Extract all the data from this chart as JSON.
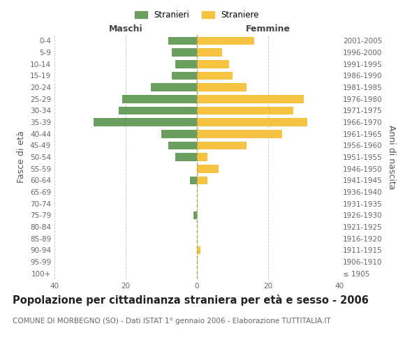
{
  "age_groups": [
    "100+",
    "95-99",
    "90-94",
    "85-89",
    "80-84",
    "75-79",
    "70-74",
    "65-69",
    "60-64",
    "55-59",
    "50-54",
    "45-49",
    "40-44",
    "35-39",
    "30-34",
    "25-29",
    "20-24",
    "15-19",
    "10-14",
    "5-9",
    "0-4"
  ],
  "birth_years": [
    "≤ 1905",
    "1906-1910",
    "1911-1915",
    "1916-1920",
    "1921-1925",
    "1926-1930",
    "1931-1935",
    "1936-1940",
    "1941-1945",
    "1946-1950",
    "1951-1955",
    "1956-1960",
    "1961-1965",
    "1966-1970",
    "1971-1975",
    "1976-1980",
    "1981-1985",
    "1986-1990",
    "1991-1995",
    "1996-2000",
    "2001-2005"
  ],
  "maschi": [
    0,
    0,
    0,
    0,
    0,
    1,
    0,
    0,
    2,
    0,
    6,
    8,
    10,
    29,
    22,
    21,
    13,
    7,
    6,
    7,
    8
  ],
  "femmine": [
    0,
    0,
    1,
    0,
    0,
    0,
    0,
    0,
    3,
    6,
    3,
    14,
    24,
    31,
    27,
    30,
    14,
    10,
    9,
    7,
    16
  ],
  "maschi_color": "#6a9e5e",
  "femmine_color": "#f5c242",
  "bar_height": 0.7,
  "xlim": 40,
  "title": "Popolazione per cittadinanza straniera per età e sesso - 2006",
  "subtitle": "COMUNE DI MORBEGNO (SO) - Dati ISTAT 1° gennaio 2006 - Elaborazione TUTTITALIA.IT",
  "ylabel": "Fasce di età",
  "ylabel_right": "Anni di nascita",
  "xlabel_left": "Maschi",
  "xlabel_right": "Femmine",
  "legend_stranieri": "Stranieri",
  "legend_straniere": "Straniere",
  "background_color": "#ffffff",
  "grid_color": "#cccccc",
  "title_fontsize": 10.5,
  "subtitle_fontsize": 7.5,
  "tick_fontsize": 7.5,
  "label_fontsize": 9
}
